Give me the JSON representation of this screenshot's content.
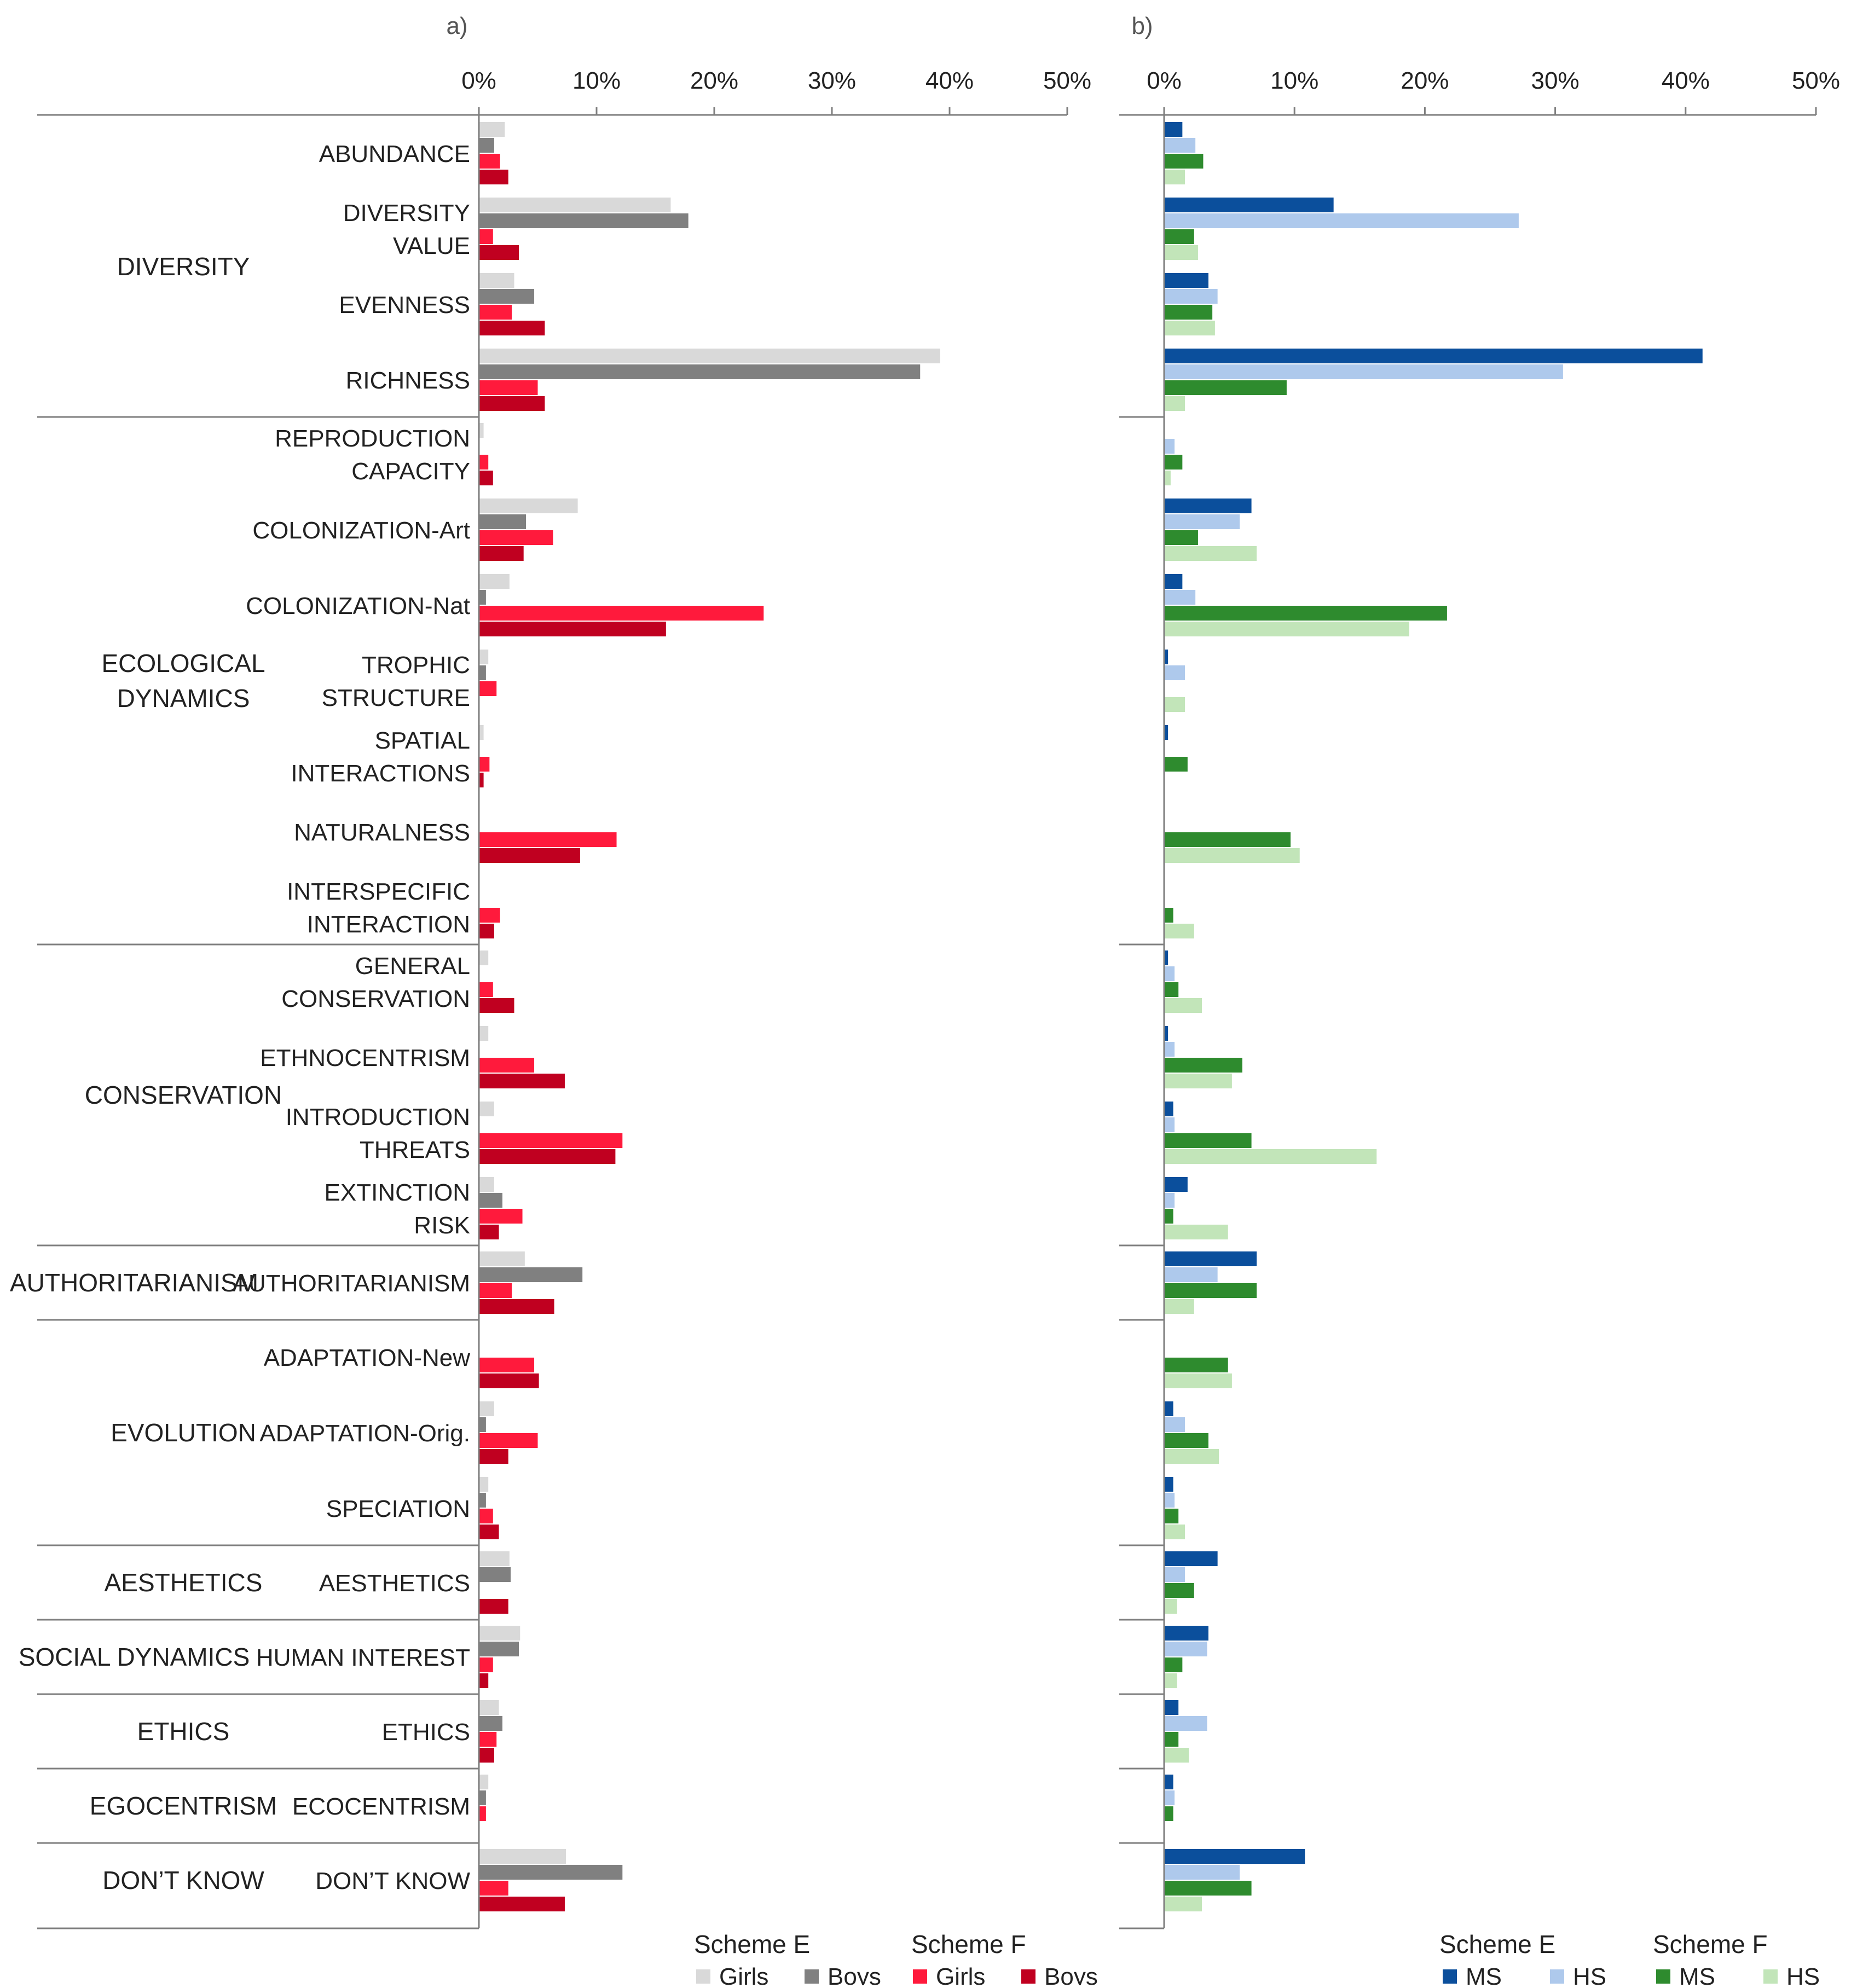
{
  "chart_data": [
    {
      "type": "bar",
      "orientation": "horizontal",
      "panel_label": "a)",
      "xlim": [
        0,
        50
      ],
      "xticks": [
        "0%",
        "10%",
        "20%",
        "30%",
        "40%",
        "50%"
      ],
      "groups": [
        {
          "label": "DIVERSITY",
          "categories": [
            {
              "label": [
                "ABUNDANCE"
              ],
              "values": [
                2.2,
                1.3,
                1.8,
                2.5
              ]
            },
            {
              "label": [
                "DIVERSITY",
                "VALUE"
              ],
              "values": [
                16.3,
                17.8,
                1.2,
                3.4
              ]
            },
            {
              "label": [
                "EVENNESS"
              ],
              "values": [
                3.0,
                4.7,
                2.8,
                5.6
              ]
            },
            {
              "label": [
                "RICHNESS"
              ],
              "values": [
                39.2,
                37.5,
                5.0,
                5.6
              ]
            }
          ]
        },
        {
          "label": "ECOLOGICAL\nDYNAMICS",
          "categories": [
            {
              "label": [
                "REPRODUCTION",
                "CAPACITY"
              ],
              "values": [
                0.4,
                0.0,
                0.8,
                1.2
              ]
            },
            {
              "label": [
                "COLONIZATION-Art"
              ],
              "values": [
                8.4,
                4.0,
                6.3,
                3.8
              ]
            },
            {
              "label": [
                "COLONIZATION-Nat"
              ],
              "values": [
                2.6,
                0.6,
                24.2,
                15.9
              ]
            },
            {
              "label": [
                "TROPHIC",
                "STRUCTURE"
              ],
              "values": [
                0.8,
                0.6,
                1.5,
                0.0
              ]
            },
            {
              "label": [
                "SPATIAL",
                "INTERACTIONS"
              ],
              "values": [
                0.4,
                0.0,
                0.9,
                0.4
              ]
            },
            {
              "label": [
                "NATURALNESS"
              ],
              "values": [
                0.0,
                0.0,
                11.7,
                8.6
              ]
            },
            {
              "label": [
                "INTERSPECIFIC",
                "INTERACTION"
              ],
              "values": [
                0.0,
                0.0,
                1.8,
                1.3
              ]
            }
          ]
        },
        {
          "label": "CONSERVATION",
          "categories": [
            {
              "label": [
                "GENERAL",
                "CONSERVATION"
              ],
              "values": [
                0.8,
                0.0,
                1.2,
                3.0
              ]
            },
            {
              "label": [
                "ETHNOCENTRISM"
              ],
              "values": [
                0.8,
                0.0,
                4.7,
                7.3
              ]
            },
            {
              "label": [
                "INTRODUCTION",
                "THREATS"
              ],
              "values": [
                1.3,
                0.0,
                12.2,
                11.6
              ]
            },
            {
              "label": [
                "EXTINCTION",
                "RISK"
              ],
              "values": [
                1.3,
                2.0,
                3.7,
                1.7
              ]
            }
          ]
        },
        {
          "label": "AUTHORITARIANISM",
          "categories": [
            {
              "label": [
                "AUTHORITARIANISM"
              ],
              "values": [
                3.9,
                8.8,
                2.8,
                6.4
              ]
            }
          ]
        },
        {
          "label": "EVOLUTION",
          "categories": [
            {
              "label": [
                "ADAPTATION-New"
              ],
              "values": [
                0.0,
                0.0,
                4.7,
                5.1
              ]
            },
            {
              "label": [
                "ADAPTATION-Orig."
              ],
              "values": [
                1.3,
                0.6,
                5.0,
                2.5
              ]
            },
            {
              "label": [
                "SPECIATION"
              ],
              "values": [
                0.8,
                0.6,
                1.2,
                1.7
              ]
            }
          ]
        },
        {
          "label": "AESTHETICS",
          "categories": [
            {
              "label": [
                "AESTHETICS"
              ],
              "values": [
                2.6,
                2.7,
                0.0,
                2.5
              ]
            }
          ]
        },
        {
          "label": "SOCIAL DYNAMICS",
          "categories": [
            {
              "label": [
                "HUMAN INTEREST"
              ],
              "values": [
                3.5,
                3.4,
                1.2,
                0.8
              ]
            }
          ]
        },
        {
          "label": "ETHICS",
          "categories": [
            {
              "label": [
                "ETHICS"
              ],
              "values": [
                1.7,
                2.0,
                1.5,
                1.3
              ]
            }
          ]
        },
        {
          "label": "EGOCENTRISM",
          "categories": [
            {
              "label": [
                "ECOCENTRISM"
              ],
              "values": [
                0.8,
                0.6,
                0.6,
                0.0
              ]
            }
          ]
        },
        {
          "label": "DON’T KNOW",
          "categories": [
            {
              "label": [
                "DON’T KNOW"
              ],
              "values": [
                7.4,
                12.2,
                2.5,
                7.3
              ]
            }
          ]
        }
      ],
      "series": [
        {
          "name": "Girls",
          "scheme": "Scheme E",
          "color": "#d9d9d9"
        },
        {
          "name": "Boys",
          "scheme": "Scheme E",
          "color": "#808080"
        },
        {
          "name": "Girls",
          "scheme": "Scheme F",
          "color": "#ff1a3c"
        },
        {
          "name": "Boys",
          "scheme": "Scheme F",
          "color": "#c00020"
        }
      ],
      "legend": [
        {
          "title": "Scheme E",
          "items": [
            {
              "name": "Girls",
              "color": "#d9d9d9"
            },
            {
              "name": "Boys",
              "color": "#808080"
            }
          ]
        },
        {
          "title": "Scheme F",
          "items": [
            {
              "name": "Girls",
              "color": "#ff1a3c"
            },
            {
              "name": "Boys",
              "color": "#c00020"
            }
          ]
        }
      ],
      "legend_position": "bottom-right"
    },
    {
      "type": "bar",
      "orientation": "horizontal",
      "panel_label": "b)",
      "xlim": [
        0,
        50
      ],
      "xticks": [
        "0%",
        "10%",
        "20%",
        "30%",
        "40%",
        "50%"
      ],
      "groups": [
        {
          "categories": [
            {
              "values": [
                1.4,
                2.4,
                3.0,
                1.6
              ]
            },
            {
              "values": [
                13.0,
                27.2,
                2.3,
                2.6
              ]
            },
            {
              "values": [
                3.4,
                4.1,
                3.7,
                3.9
              ]
            },
            {
              "values": [
                41.3,
                30.6,
                9.4,
                1.6
              ]
            }
          ]
        },
        {
          "categories": [
            {
              "values": [
                0.0,
                0.8,
                1.4,
                0.5
              ]
            },
            {
              "values": [
                6.7,
                5.8,
                2.6,
                7.1
              ]
            },
            {
              "values": [
                1.4,
                2.4,
                21.7,
                18.8
              ]
            },
            {
              "values": [
                0.3,
                1.6,
                0.0,
                1.6
              ]
            },
            {
              "values": [
                0.3,
                0.0,
                1.8,
                0.0
              ]
            },
            {
              "values": [
                0.0,
                0.0,
                9.7,
                10.4
              ]
            },
            {
              "values": [
                0.0,
                0.0,
                0.7,
                2.3
              ]
            }
          ]
        },
        {
          "categories": [
            {
              "values": [
                0.3,
                0.8,
                1.1,
                2.9
              ]
            },
            {
              "values": [
                0.3,
                0.8,
                6.0,
                5.2
              ]
            },
            {
              "values": [
                0.7,
                0.8,
                6.7,
                16.3
              ]
            },
            {
              "values": [
                1.8,
                0.8,
                0.7,
                4.9
              ]
            }
          ]
        },
        {
          "categories": [
            {
              "values": [
                7.1,
                4.1,
                7.1,
                2.3
              ]
            }
          ]
        },
        {
          "categories": [
            {
              "values": [
                0.0,
                0.0,
                4.9,
                5.2
              ]
            },
            {
              "values": [
                0.7,
                1.6,
                3.4,
                4.2
              ]
            },
            {
              "values": [
                0.7,
                0.8,
                1.1,
                1.6
              ]
            }
          ]
        },
        {
          "categories": [
            {
              "values": [
                4.1,
                1.6,
                2.3,
                1.0
              ]
            }
          ]
        },
        {
          "categories": [
            {
              "values": [
                3.4,
                3.3,
                1.4,
                1.0
              ]
            }
          ]
        },
        {
          "categories": [
            {
              "values": [
                1.1,
                3.3,
                1.1,
                1.9
              ]
            }
          ]
        },
        {
          "categories": [
            {
              "values": [
                0.7,
                0.8,
                0.7,
                0.0
              ]
            }
          ]
        },
        {
          "categories": [
            {
              "values": [
                10.8,
                5.8,
                6.7,
                2.9
              ]
            }
          ]
        }
      ],
      "series": [
        {
          "name": "MS",
          "scheme": "Scheme E",
          "color": "#0b4f9c"
        },
        {
          "name": "HS",
          "scheme": "Scheme E",
          "color": "#aec9ec"
        },
        {
          "name": "MS",
          "scheme": "Scheme F",
          "color": "#2e8b2e"
        },
        {
          "name": "HS",
          "scheme": "Scheme F",
          "color": "#c2e5b9"
        }
      ],
      "legend": [
        {
          "title": "Scheme E",
          "items": [
            {
              "name": "MS",
              "color": "#0b4f9c"
            },
            {
              "name": "HS",
              "color": "#aec9ec"
            }
          ]
        },
        {
          "title": "Scheme F",
          "items": [
            {
              "name": "MS",
              "color": "#2e8b2e"
            },
            {
              "name": "HS",
              "color": "#c2e5b9"
            }
          ]
        }
      ],
      "legend_position": "bottom-right"
    }
  ]
}
